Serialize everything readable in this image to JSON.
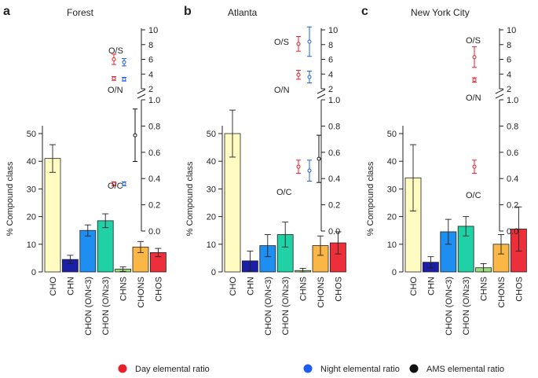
{
  "chart_data": [
    {
      "type": "bar",
      "panel_letter": "a",
      "title": "Forest",
      "ylabel": "% Compound class",
      "ylim": [
        0,
        50
      ],
      "yticks": [
        0,
        10,
        20,
        30,
        40,
        50
      ],
      "categories": [
        "CHO",
        "CHN",
        "CHON (O/N<3)",
        "CHON (O/N≥3)",
        "CHNS",
        "CHONS",
        "CHOS"
      ],
      "values": [
        41,
        4.5,
        15,
        18.5,
        1,
        9,
        7
      ],
      "errors": [
        5,
        1.5,
        2,
        2.5,
        0.8,
        2,
        1.5
      ],
      "colors": [
        "#fffbc1",
        "#1b1fa8",
        "#1e8ff0",
        "#1fd1a5",
        "#9adf75",
        "#fbb745",
        "#ec2f3a"
      ],
      "ratios": {
        "ticks_upper": [
          2,
          4,
          6,
          8,
          10
        ],
        "ticks_lower": [
          "0.0",
          "0.2",
          "0.4",
          "0.6",
          "0.8",
          "1.0"
        ],
        "labels": [
          "O/S",
          "O/N",
          "O/C"
        ],
        "OS": {
          "day": [
            6.0,
            0.7
          ],
          "night": [
            5.6,
            0.5
          ]
        },
        "ON": {
          "day": [
            3.4,
            0.25
          ],
          "night": [
            3.3,
            0.25
          ]
        },
        "OC": {
          "day": [
            0.36,
            0.015
          ],
          "night": [
            0.36,
            0.015
          ]
        },
        "ams_OC": [
          0.73,
          0.2
        ]
      }
    },
    {
      "type": "bar",
      "panel_letter": "b",
      "title": "Atlanta",
      "ylabel": "% Compound class",
      "ylim": [
        0,
        50
      ],
      "yticks": [
        0,
        10,
        20,
        30,
        40,
        50
      ],
      "categories": [
        "CHO",
        "CHN",
        "CHON (O/N<3)",
        "CHON (O/N≥3)",
        "CHNS",
        "CHONS",
        "CHOS"
      ],
      "values": [
        50,
        4,
        9.5,
        13.5,
        0.5,
        9.5,
        10.5
      ],
      "errors": [
        8.5,
        3.5,
        4,
        4.5,
        0.8,
        3.5,
        4
      ],
      "colors": [
        "#fffbc1",
        "#1b1fa8",
        "#1e8ff0",
        "#1fd1a5",
        "#9adf75",
        "#fbb745",
        "#ec2f3a"
      ],
      "ratios": {
        "ticks_upper": [
          2,
          4,
          6,
          8,
          10
        ],
        "ticks_lower": [
          "0.0",
          "0.2",
          "0.4",
          "0.6",
          "0.8",
          "1.0"
        ],
        "labels": [
          "O/S",
          "O/N",
          "O/C"
        ],
        "OS": {
          "day": [
            8.1,
            1.0
          ],
          "night": [
            8.4,
            2.0
          ]
        },
        "ON": {
          "day": [
            3.9,
            0.6
          ],
          "night": [
            3.6,
            0.8
          ]
        },
        "OC": {
          "day": [
            0.49,
            0.05
          ],
          "night": [
            0.46,
            0.08
          ]
        },
        "ams_OC": [
          0.55,
          0.18
        ]
      }
    },
    {
      "type": "bar",
      "panel_letter": "c",
      "title": "New York City",
      "ylabel": "% Compound class",
      "ylim": [
        0,
        50
      ],
      "yticks": [
        0,
        10,
        20,
        30,
        40,
        50
      ],
      "categories": [
        "CHO",
        "CHN",
        "CHON (O/N<3)",
        "CHON (O/N≥3)",
        "CHNS",
        "CHONS",
        "CHOS"
      ],
      "values": [
        34,
        3.5,
        14.5,
        16.5,
        1.5,
        10,
        15.5
      ],
      "errors": [
        12,
        2,
        4.5,
        3.5,
        1.5,
        3.5,
        8
      ],
      "colors": [
        "#fffbc1",
        "#1b1fa8",
        "#1e8ff0",
        "#1fd1a5",
        "#9adf75",
        "#fbb745",
        "#ec2f3a"
      ],
      "ratios": {
        "ticks_upper": [
          2,
          4,
          6,
          8,
          10
        ],
        "ticks_lower": [
          "0.0",
          "0.2",
          "0.4",
          "0.6",
          "0.8",
          "1.0"
        ],
        "labels": [
          "O/S",
          "O/N",
          "O/C"
        ],
        "OS": {
          "day": [
            6.3,
            1.4
          ]
        },
        "ON": {
          "day": [
            3.2,
            0.3
          ]
        },
        "OC": {
          "day": [
            0.49,
            0.05
          ]
        }
      }
    }
  ],
  "legend": {
    "items": [
      {
        "label": "Day elemental ratio",
        "color": "#e8202a"
      },
      {
        "label": "Night elemental ratio",
        "color": "#1f5cf0"
      },
      {
        "label": "AMS elemental ratio",
        "color": "#111111"
      }
    ]
  }
}
